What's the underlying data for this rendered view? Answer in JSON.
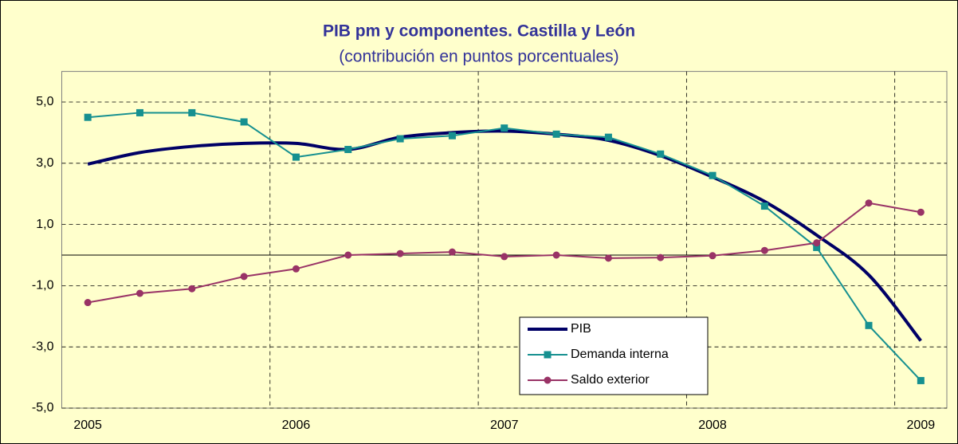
{
  "chart_data": {
    "type": "line",
    "title": "PIB pm y componentes. Castilla y León",
    "subtitle": "(contribución en puntos porcentuales)",
    "categories": [
      "2005",
      null,
      null,
      null,
      "2006",
      null,
      null,
      null,
      "2007",
      null,
      null,
      null,
      "2008",
      null,
      null,
      null,
      "2009"
    ],
    "series": [
      {
        "name": "PIB",
        "color": "#000066",
        "smooth": true,
        "marker": "none",
        "values": [
          2.97,
          3.35,
          3.55,
          3.65,
          3.65,
          3.45,
          3.85,
          4.0,
          4.05,
          3.95,
          3.75,
          3.25,
          2.55,
          1.75,
          0.65,
          -0.65,
          -2.8
        ]
      },
      {
        "name": "Demanda interna",
        "color": "#169090",
        "marker": "square",
        "values": [
          4.5,
          4.65,
          4.65,
          4.35,
          3.2,
          3.45,
          3.8,
          3.9,
          4.15,
          3.95,
          3.85,
          3.3,
          2.6,
          1.6,
          0.25,
          -2.3,
          -4.1
        ]
      },
      {
        "name": "Saldo exterior",
        "color": "#993366",
        "marker": "circle",
        "values": [
          -1.55,
          -1.25,
          -1.1,
          -0.7,
          -0.45,
          0.0,
          0.05,
          0.1,
          -0.05,
          0.0,
          -0.1,
          -0.08,
          -0.02,
          0.15,
          0.4,
          1.7,
          1.4
        ]
      }
    ],
    "ylim": [
      -5,
      6
    ],
    "yticks": [
      {
        "value": -5,
        "label": "-5,0"
      },
      {
        "value": -3,
        "label": "-3,0"
      },
      {
        "value": -1,
        "label": "-1,0"
      },
      {
        "value": 1,
        "label": "1,0"
      },
      {
        "value": 3,
        "label": "3,0"
      },
      {
        "value": 5,
        "label": "5,0"
      }
    ],
    "grid": true,
    "legend": "bottom-center"
  }
}
